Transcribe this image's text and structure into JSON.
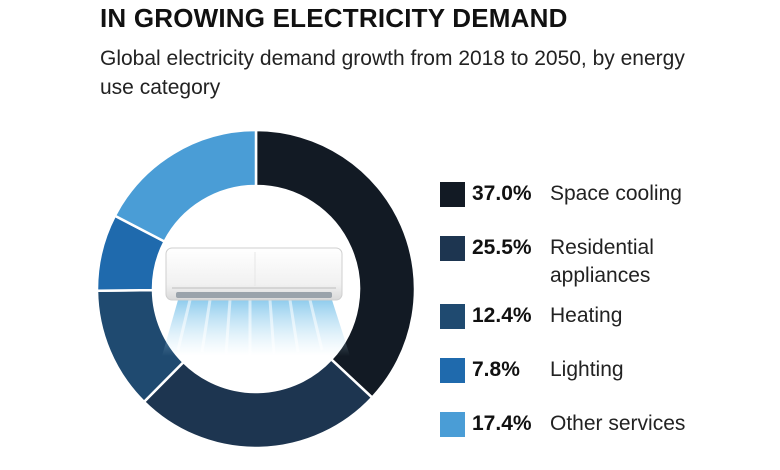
{
  "header": {
    "title": "IN GROWING ELECTRICITY DEMAND",
    "subtitle": "Global electricity demand growth from 2018 to 2050, by energy use category"
  },
  "chart_data": {
    "type": "pie",
    "donut": true,
    "title": "IN GROWING ELECTRICITY DEMAND",
    "subtitle": "Global electricity demand growth from 2018 to 2050, by energy use category",
    "categories": [
      "Space cooling",
      "Residential appliances",
      "Heating",
      "Lighting",
      "Other services"
    ],
    "values": [
      37.0,
      25.5,
      12.4,
      7.8,
      17.4
    ],
    "value_labels": [
      "37.0%",
      "25.5%",
      "12.4%",
      "7.8%",
      "17.4%"
    ],
    "colors": [
      "#121a24",
      "#1d3550",
      "#1f4a70",
      "#1f6aad",
      "#4a9dd6"
    ],
    "start_angle": "12 o'clock",
    "direction": "clockwise",
    "legend_position": "right",
    "center_image": "air-conditioner-icon"
  }
}
